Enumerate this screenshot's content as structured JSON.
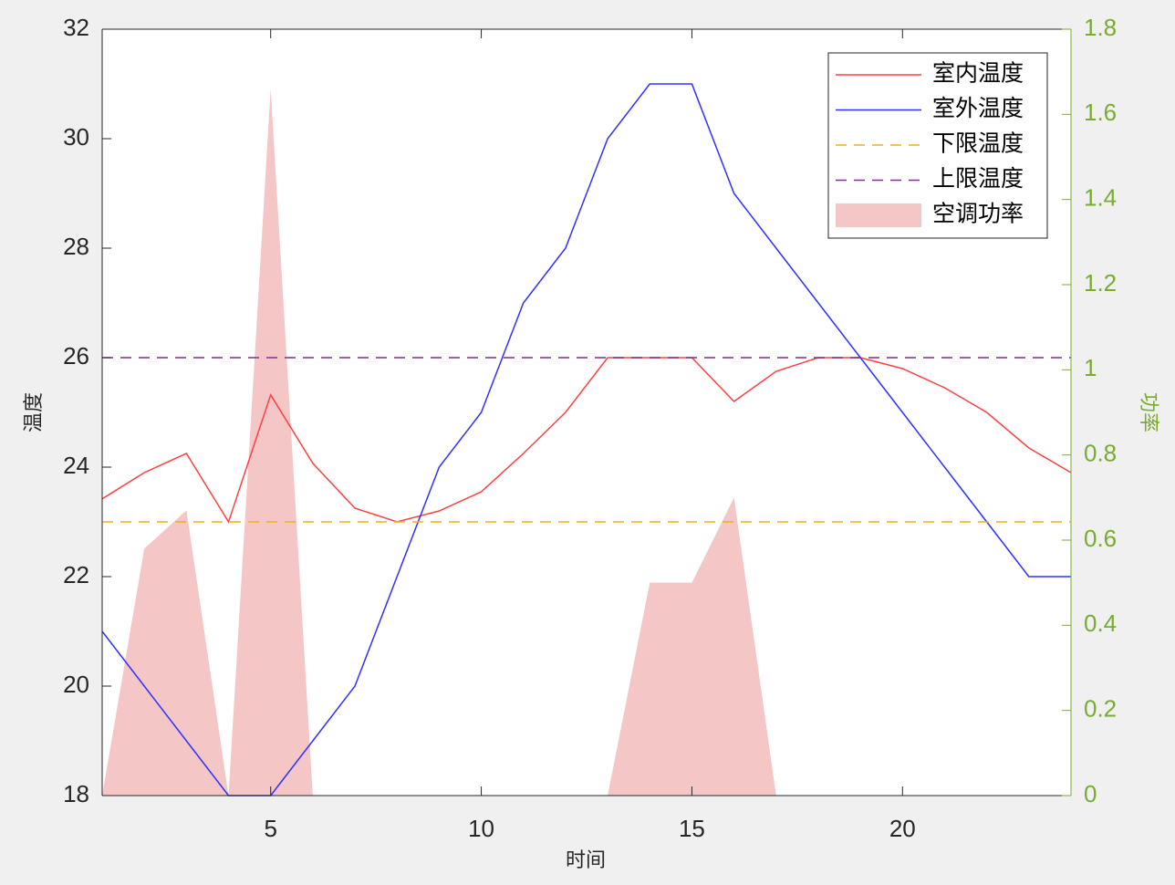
{
  "chart_data": {
    "type": "line",
    "xlabel": "时间",
    "ylabel": "温度",
    "y2label": "功率",
    "x": [
      1,
      2,
      3,
      4,
      5,
      6,
      7,
      8,
      9,
      10,
      11,
      12,
      13,
      14,
      15,
      16,
      17,
      18,
      19,
      20,
      21,
      22,
      23,
      24
    ],
    "xlim": [
      1,
      24
    ],
    "xticks": [
      5,
      10,
      15,
      20
    ],
    "ylim": [
      18,
      32
    ],
    "yticks": [
      18,
      20,
      22,
      24,
      26,
      28,
      30,
      32
    ],
    "y2lim": [
      0,
      1.8
    ],
    "y2ticks": [
      0,
      0.2,
      0.4,
      0.6,
      0.8,
      1,
      1.2,
      1.4,
      1.6,
      1.8
    ],
    "y2color": "#77ac30",
    "legend": "upper right",
    "series": [
      {
        "name": "室内温度",
        "type": "line",
        "color": "#ff4040",
        "values": [
          23.42,
          23.9,
          24.25,
          23.0,
          25.32,
          24.07,
          23.25,
          23.0,
          23.2,
          23.55,
          24.25,
          25.0,
          26,
          26,
          26,
          25.2,
          25.75,
          26,
          26,
          25.8,
          25.45,
          25.0,
          24.35,
          23.9
        ]
      },
      {
        "name": "室外温度",
        "type": "line",
        "color": "#3030ff",
        "values": [
          21,
          20,
          19,
          18,
          18,
          19,
          20,
          22,
          24,
          25,
          27,
          28,
          30,
          31,
          31,
          29,
          28,
          27,
          26,
          25,
          24,
          23,
          22,
          22
        ]
      },
      {
        "name": "下限温度",
        "type": "hline",
        "color": "#edb120",
        "value": 23
      },
      {
        "name": "上限温度",
        "type": "hline",
        "color": "#7e2f8e",
        "value": 26
      },
      {
        "name": "空调功率",
        "type": "area",
        "axis": "y2",
        "color": "#f5c6c6",
        "values": [
          0,
          0.58,
          0.67,
          0,
          1.66,
          0,
          0,
          0,
          0,
          0,
          0,
          0,
          0,
          0.5,
          0.5,
          0.7,
          0,
          0,
          0,
          0,
          0,
          0,
          0,
          0
        ]
      }
    ]
  }
}
